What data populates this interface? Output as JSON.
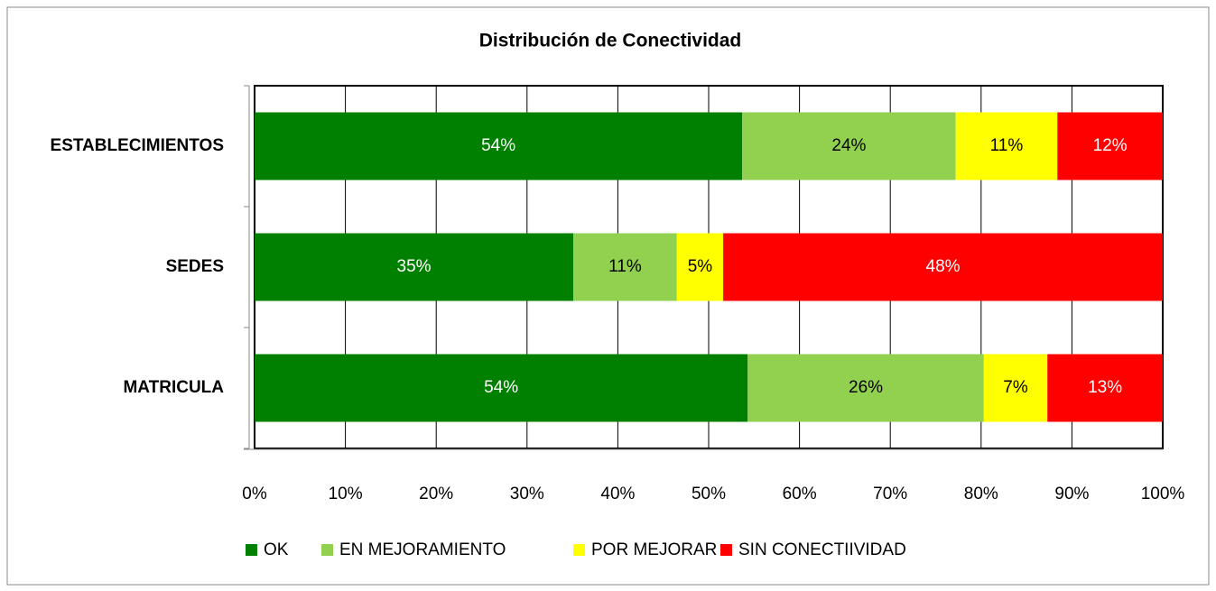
{
  "chart_data": {
    "type": "stacked-barh",
    "title": "Distribución de Conectividad",
    "categories": [
      "ESTABLECIMIENTOS",
      "SEDES",
      "MATRICULA"
    ],
    "series": [
      {
        "name": "OK",
        "color": "#008000",
        "values": [
          53.7,
          35.1,
          54.3
        ],
        "value_labels": [
          "54%",
          "35%",
          "54%"
        ]
      },
      {
        "name": "EN MEJORAMIENTO",
        "color": "#92d050",
        "values": [
          23.5,
          11.4,
          26.0
        ],
        "value_labels": [
          "24%",
          "11%",
          "26%"
        ]
      },
      {
        "name": "POR MEJORAR",
        "color": "#ffff00",
        "values": [
          11.2,
          5.1,
          7.0
        ],
        "value_labels": [
          "11%",
          "5%",
          "7%"
        ]
      },
      {
        "name": "SIN CONECTIIVIDAD",
        "color": "#ff0000",
        "values": [
          11.6,
          48.4,
          12.7
        ],
        "value_labels": [
          "12%",
          "48%",
          "13%"
        ]
      }
    ],
    "xlim": [
      0,
      100
    ],
    "xticks": [
      {
        "value": 0,
        "label": "0%"
      },
      {
        "value": 10,
        "label": "10%"
      },
      {
        "value": 20,
        "label": "20%"
      },
      {
        "value": 30,
        "label": "30%"
      },
      {
        "value": 40,
        "label": "40%"
      },
      {
        "value": 50,
        "label": "50%"
      },
      {
        "value": 60,
        "label": "60%"
      },
      {
        "value": 70,
        "label": "70%"
      },
      {
        "value": 80,
        "label": "80%"
      },
      {
        "value": 90,
        "label": "90%"
      },
      {
        "value": 100,
        "label": "100%"
      }
    ],
    "grid": true,
    "legend": "bottom"
  }
}
